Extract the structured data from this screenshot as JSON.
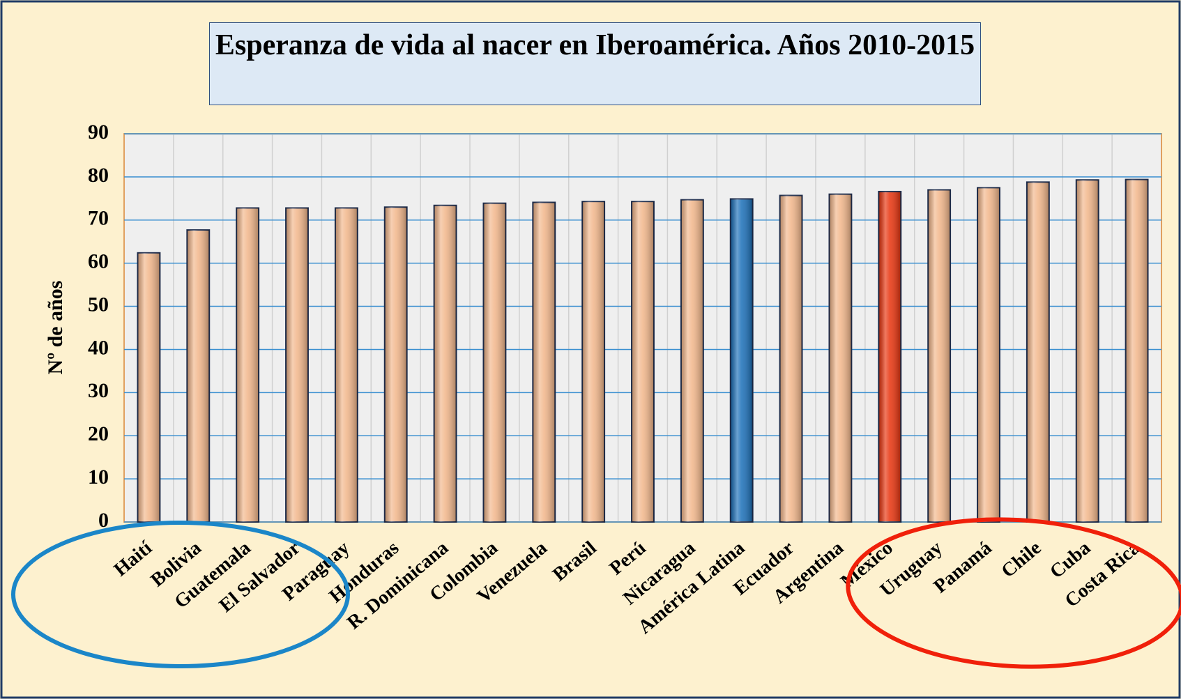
{
  "chart_data": {
    "type": "bar",
    "title": "Esperanza de vida al nacer en Iberoamérica. Años 2010-2015",
    "y_label": "Nº de años",
    "categories": [
      "Haití",
      "Bolivia",
      "Guatemala",
      "El Salvador",
      "Paraguay",
      "Honduras",
      "R. Dominicana",
      "Colombia",
      "Venezuela",
      "Brasil",
      "Perú",
      "Nicaragua",
      "América Latina",
      "Ecuador",
      "Argentina",
      "México",
      "Uruguay",
      "Panamá",
      "Chile",
      "Cuba",
      "Costa Rica"
    ],
    "values": [
      62.4,
      67.7,
      72.8,
      72.8,
      72.8,
      73.0,
      73.4,
      73.9,
      74.1,
      74.3,
      74.3,
      74.7,
      74.9,
      75.7,
      76.0,
      76.6,
      77.0,
      77.5,
      78.8,
      79.3,
      79.4
    ],
    "colors": [
      "#f2b68a",
      "#f2b68a",
      "#f2b68a",
      "#f2b68a",
      "#f2b68a",
      "#f2b68a",
      "#f2b68a",
      "#f2b68a",
      "#f2b68a",
      "#f2b68a",
      "#f2b68a",
      "#f2b68a",
      "#1a6fb8",
      "#f2b68a",
      "#f2b68a",
      "#e8320c",
      "#f2b68a",
      "#f2b68a",
      "#f2b68a",
      "#f2b68a",
      "#f2b68a"
    ],
    "ylim": [
      0,
      90
    ],
    "yticks": [
      0,
      10,
      20,
      30,
      40,
      50,
      60,
      70,
      80,
      90
    ],
    "grid": true
  }
}
